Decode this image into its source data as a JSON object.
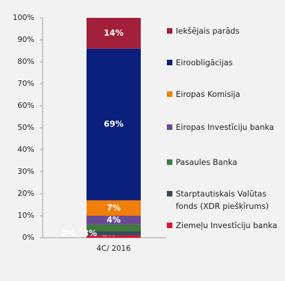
{
  "chart_data": {
    "type": "stacked_bar",
    "categories": [
      "4C/ 2016"
    ],
    "series": [
      {
        "name": "Iekšējais parāds",
        "color": "#a3203b",
        "values": [
          14
        ],
        "value_labels": [
          "14%"
        ]
      },
      {
        "name": "Eiroobligācijas",
        "color": "#0b1f7c",
        "values": [
          69
        ],
        "value_labels": [
          "69%"
        ]
      },
      {
        "name": "Eiropas Komisija",
        "color": "#f07f09",
        "values": [
          7
        ],
        "value_labels": [
          "7%"
        ]
      },
      {
        "name": "Eiropas Investīciju banka",
        "color": "#6a4a94",
        "values": [
          4
        ],
        "value_labels": [
          "4%"
        ]
      },
      {
        "name": "Pasaules Banka",
        "color": "#3e7a3a",
        "values": [
          3
        ],
        "value_labels": [
          "3%"
        ]
      },
      {
        "name": "Starptautiskais Valūtas fonds (XDR piešķīrums)",
        "color": "#3a4a5c",
        "values": [
          2
        ],
        "value_labels": [
          "2%"
        ]
      },
      {
        "name": "Ziemeļu Investīciju banka",
        "color": "#e0112b",
        "values": [
          1
        ],
        "value_labels": [
          "1%"
        ]
      }
    ],
    "ylim": [
      0,
      100
    ],
    "yticks": [
      {
        "value": 0,
        "label": "0%"
      },
      {
        "value": 10,
        "label": "10%"
      },
      {
        "value": 20,
        "label": "20%"
      },
      {
        "value": 30,
        "label": "30%"
      },
      {
        "value": 40,
        "label": "40%"
      },
      {
        "value": 50,
        "label": "50%"
      },
      {
        "value": 60,
        "label": "60%"
      },
      {
        "value": 70,
        "label": "70%"
      },
      {
        "value": 80,
        "label": "80%"
      },
      {
        "value": 90,
        "label": "90%"
      },
      {
        "value": 100,
        "label": "100%"
      }
    ],
    "legend": "right"
  }
}
